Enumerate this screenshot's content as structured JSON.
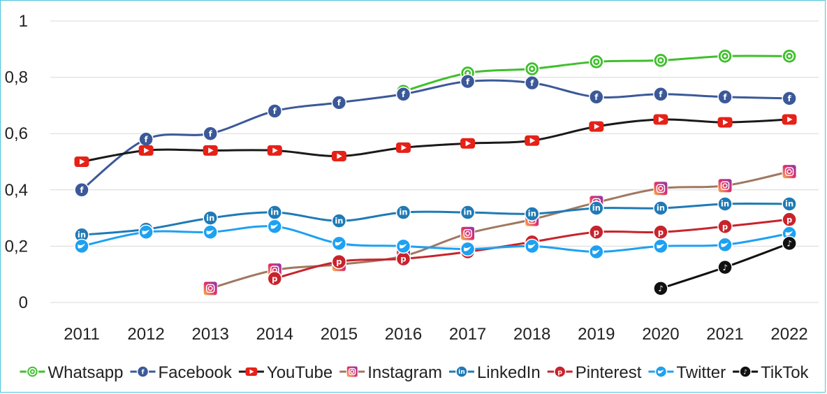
{
  "chart_data": {
    "type": "line",
    "title": "",
    "xlabel": "",
    "ylabel": "",
    "ylim": [
      0,
      1
    ],
    "y_ticks": [
      "0",
      "0,2",
      "0,4",
      "0,6",
      "0,8",
      "1"
    ],
    "y_tick_values": [
      0,
      0.2,
      0.4,
      0.6,
      0.8,
      1
    ],
    "x": [
      "2011",
      "2012",
      "2013",
      "2014",
      "2015",
      "2016",
      "2017",
      "2018",
      "2019",
      "2020",
      "2021",
      "2022"
    ],
    "grid": "horizontal",
    "legend_position": "bottom",
    "series": [
      {
        "name": "Whatsapp",
        "color": "#3fbf2c",
        "icon": "whatsapp-icon",
        "values": [
          null,
          null,
          null,
          null,
          null,
          0.75,
          0.815,
          0.83,
          0.855,
          0.86,
          0.875,
          0.875
        ]
      },
      {
        "name": "Facebook",
        "color": "#3b5998",
        "icon": "facebook-icon",
        "values": [
          0.4,
          0.58,
          0.6,
          0.68,
          0.71,
          0.74,
          0.785,
          0.78,
          0.73,
          0.74,
          0.73,
          0.725
        ]
      },
      {
        "name": "YouTube",
        "color": "#1a1a1a",
        "icon": "youtube-icon",
        "values": [
          0.5,
          0.54,
          0.54,
          0.54,
          0.52,
          0.55,
          0.565,
          0.575,
          0.625,
          0.65,
          0.64,
          0.65
        ]
      },
      {
        "name": "Instagram",
        "color": "#a07860",
        "icon": "instagram-icon",
        "values": [
          null,
          null,
          0.05,
          0.115,
          0.135,
          0.165,
          0.245,
          0.295,
          0.355,
          0.405,
          0.415,
          0.465
        ]
      },
      {
        "name": "LinkedIn",
        "color": "#1f7ab5",
        "icon": "linkedin-icon",
        "values": [
          0.24,
          0.26,
          0.3,
          0.32,
          0.29,
          0.32,
          0.32,
          0.315,
          0.335,
          0.335,
          0.35,
          0.35
        ]
      },
      {
        "name": "Pinterest",
        "color": "#c8232c",
        "icon": "pinterest-icon",
        "values": [
          null,
          null,
          null,
          0.085,
          0.145,
          0.155,
          0.18,
          0.215,
          0.25,
          0.25,
          0.27,
          0.295
        ]
      },
      {
        "name": "Twitter",
        "color": "#1da1f2",
        "icon": "twitter-icon",
        "values": [
          0.2,
          0.25,
          0.25,
          0.27,
          0.21,
          0.2,
          0.19,
          0.2,
          0.18,
          0.2,
          0.205,
          0.245
        ]
      },
      {
        "name": "TikTok",
        "color": "#111111",
        "icon": "tiktok-icon",
        "values": [
          null,
          null,
          null,
          null,
          null,
          null,
          null,
          null,
          null,
          0.05,
          0.125,
          0.21
        ]
      }
    ]
  }
}
